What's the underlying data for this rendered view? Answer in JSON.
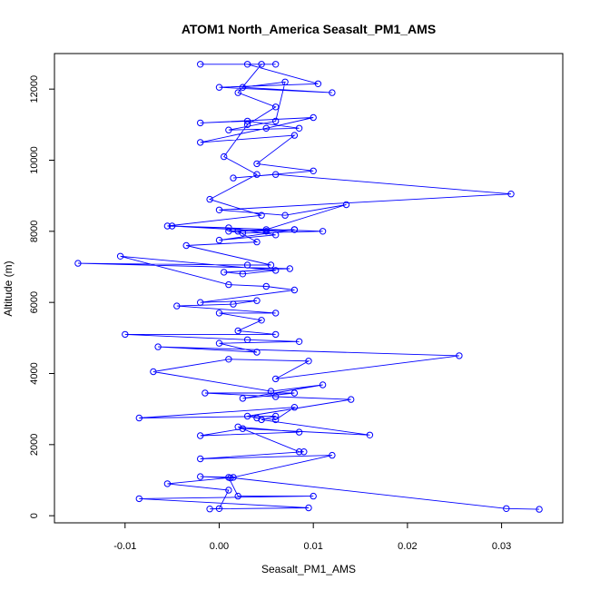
{
  "chart_data": {
    "type": "scatter",
    "title": "ATOM1 North_America Seasalt_PM1_AMS",
    "xlabel": "Seasalt_PM1_AMS",
    "ylabel": "Altitude (m)",
    "xlim": [
      -0.0175,
      0.0365
    ],
    "ylim": [
      -200,
      13000
    ],
    "x_ticks": [
      -0.01,
      0.0,
      0.01,
      0.02,
      0.03
    ],
    "x_tick_labels": [
      "-0.01",
      "0.00",
      "0.01",
      "0.02",
      "0.03"
    ],
    "y_ticks": [
      0,
      2000,
      4000,
      6000,
      8000,
      10000,
      12000
    ],
    "y_tick_labels": [
      "0",
      "2000",
      "4000",
      "6000",
      "8000",
      "10000",
      "12000"
    ],
    "grid": false,
    "legend": "none",
    "series": [
      {
        "color": "#0000ff",
        "marker": "open-circle",
        "connected": true,
        "points": [
          [
            0.034,
            180
          ],
          [
            0.0305,
            200
          ],
          [
            0.001,
            1080
          ],
          [
            0.002,
            550
          ],
          [
            0.01,
            550
          ],
          [
            -0.0085,
            480
          ],
          [
            0.0095,
            220
          ],
          [
            -0.001,
            190
          ],
          [
            0.0,
            200
          ],
          [
            0.001,
            720
          ],
          [
            -0.0055,
            900
          ],
          [
            0.0015,
            1080
          ],
          [
            -0.002,
            1100
          ],
          [
            0.0012,
            1060
          ],
          [
            0.012,
            1700
          ],
          [
            -0.002,
            1600
          ],
          [
            0.009,
            1800
          ],
          [
            0.0085,
            1800
          ],
          [
            0.002,
            2500
          ],
          [
            0.0085,
            2350
          ],
          [
            -0.002,
            2250
          ],
          [
            0.0025,
            2450
          ],
          [
            0.016,
            2270
          ],
          [
            0.0045,
            2700
          ],
          [
            0.006,
            2800
          ],
          [
            -0.0085,
            2750
          ],
          [
            0.008,
            3050
          ],
          [
            0.006,
            2700
          ],
          [
            0.004,
            2750
          ],
          [
            0.003,
            2800
          ],
          [
            0.014,
            3270
          ],
          [
            0.006,
            3350
          ],
          [
            -0.0015,
            3450
          ],
          [
            0.008,
            3450
          ],
          [
            0.0025,
            3300
          ],
          [
            0.011,
            3680
          ],
          [
            0.0055,
            3500
          ],
          [
            -0.007,
            4050
          ],
          [
            0.001,
            4400
          ],
          [
            0.0095,
            4350
          ],
          [
            0.006,
            3850
          ],
          [
            0.0255,
            4500
          ],
          [
            -0.0065,
            4750
          ],
          [
            0.004,
            4600
          ],
          [
            0.0,
            4850
          ],
          [
            0.0085,
            4900
          ],
          [
            0.003,
            4950
          ],
          [
            -0.01,
            5100
          ],
          [
            0.006,
            5100
          ],
          [
            0.002,
            5200
          ],
          [
            0.0045,
            5500
          ],
          [
            0.0,
            5700
          ],
          [
            0.006,
            5700
          ],
          [
            -0.0045,
            5900
          ],
          [
            0.0015,
            5950
          ],
          [
            0.004,
            6050
          ],
          [
            -0.002,
            6000
          ],
          [
            0.008,
            6350
          ],
          [
            0.005,
            6450
          ],
          [
            0.001,
            6500
          ],
          [
            -0.0105,
            7300
          ],
          [
            0.006,
            6900
          ],
          [
            0.0025,
            6800
          ],
          [
            0.0005,
            6850
          ],
          [
            0.0075,
            6950
          ],
          [
            -0.015,
            7100
          ],
          [
            0.003,
            7050
          ],
          [
            0.0055,
            7050
          ],
          [
            -0.0035,
            7600
          ],
          [
            0.004,
            7700
          ],
          [
            0.002,
            8000
          ],
          [
            0.008,
            8050
          ],
          [
            0.005,
            8000
          ],
          [
            -0.005,
            8150
          ],
          [
            0.011,
            8000
          ],
          [
            0.0025,
            7950
          ],
          [
            0.001,
            8000
          ],
          [
            0.005,
            8050
          ],
          [
            0.0135,
            8750
          ],
          [
            0.007,
            8450
          ],
          [
            0.0,
            8600
          ],
          [
            0.031,
            9050
          ],
          [
            0.006,
            9600
          ],
          [
            0.0015,
            9500
          ],
          [
            0.01,
            9700
          ],
          [
            0.004,
            9900
          ],
          [
            0.008,
            10700
          ],
          [
            -0.002,
            10500
          ],
          [
            0.005,
            10900
          ],
          [
            0.01,
            11200
          ],
          [
            -0.002,
            11050
          ],
          [
            0.003,
            11100
          ],
          [
            0.0085,
            10900
          ],
          [
            0.001,
            10850
          ],
          [
            0.006,
            11100
          ],
          [
            0.007,
            12200
          ],
          [
            0.0025,
            12050
          ],
          [
            0.012,
            11900
          ],
          [
            0.0,
            12050
          ],
          [
            0.0105,
            12150
          ],
          [
            0.003,
            12700
          ],
          [
            0.006,
            12700
          ],
          [
            -0.002,
            12700
          ],
          [
            0.0045,
            12700
          ],
          [
            0.002,
            11900
          ],
          [
            0.006,
            11500
          ],
          [
            0.003,
            11000
          ],
          [
            0.0005,
            10100
          ],
          [
            0.004,
            9600
          ],
          [
            -0.001,
            8900
          ],
          [
            0.0045,
            8450
          ],
          [
            -0.0055,
            8150
          ],
          [
            0.001,
            8100
          ],
          [
            0.006,
            7900
          ],
          [
            0.0,
            7750
          ],
          [
            0.008,
            8050
          ]
        ]
      }
    ]
  }
}
